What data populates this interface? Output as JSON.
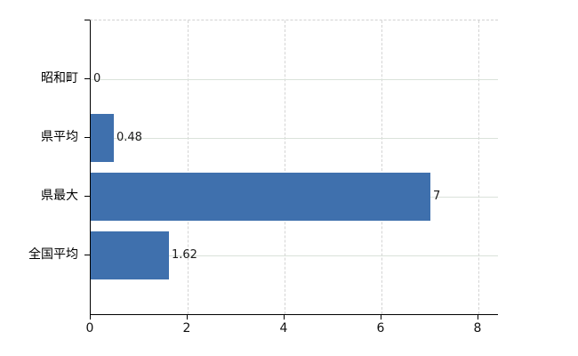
{
  "chart_data": {
    "type": "bar",
    "orientation": "horizontal",
    "title": "",
    "categories": [
      "昭和町",
      "県平均",
      "県最大",
      "全国平均"
    ],
    "values": [
      0,
      0.48,
      7,
      1.62
    ],
    "value_labels": [
      "0",
      "0.48",
      "7",
      "1.62"
    ],
    "xticks": [
      "0",
      "2",
      "4",
      "6",
      "8"
    ],
    "xtick_values": [
      0,
      2,
      4,
      6,
      8
    ],
    "xlim": [
      0,
      8
    ],
    "ylabel": "",
    "xlabel": "",
    "grid": "on",
    "legend_position": "none",
    "colors": {
      "bar": "#3f70ad",
      "axis": "#000000",
      "grid_horizontal": "#dae2da",
      "grid_vertical": "#d4d4d4",
      "category_label": "#000000",
      "value_label": "#1a1a1a",
      "tick_label": "#111111",
      "background": "#ffffff"
    }
  }
}
